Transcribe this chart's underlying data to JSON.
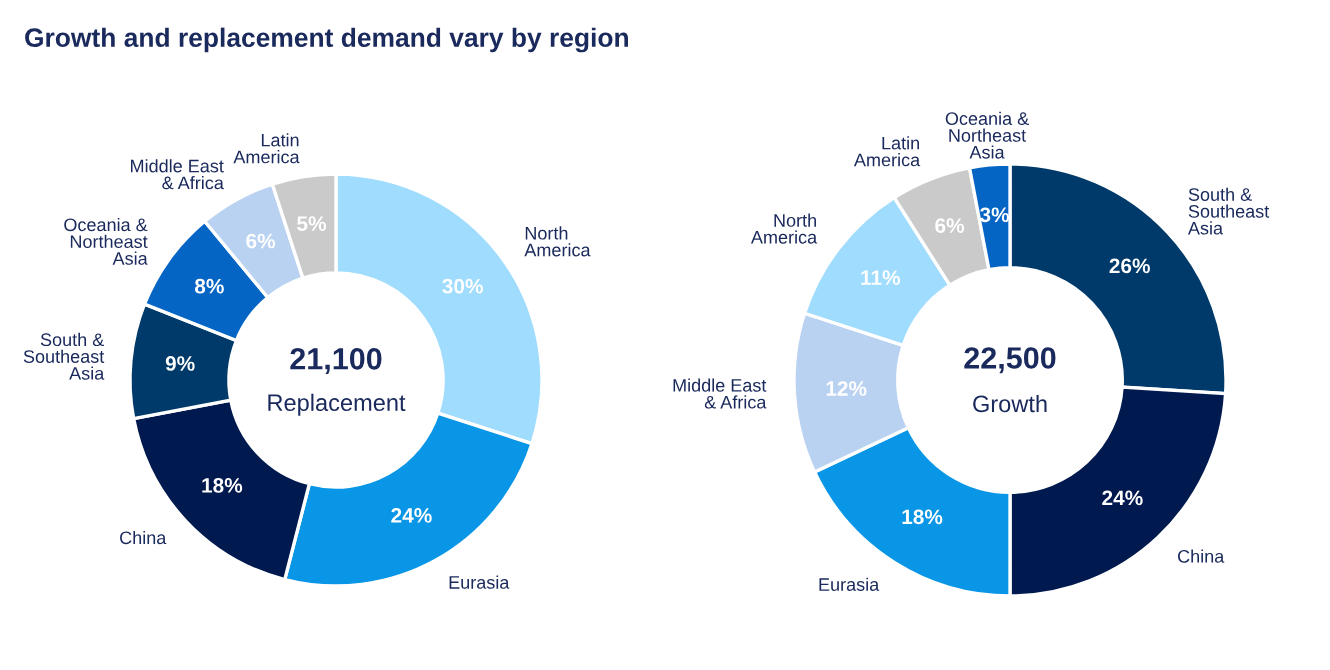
{
  "chart_data": [
    {
      "type": "donut",
      "title": "Growth and replacement demand vary by region",
      "categories": [
        "North America",
        "Eurasia",
        "China",
        "South & Southeast Asia",
        "Oceania & Northeast Asia",
        "Middle East & Africa",
        "Latin America"
      ],
      "values": [
        30,
        24,
        18,
        9,
        8,
        6,
        5
      ],
      "value_labels": [
        "30%",
        "24%",
        "18%",
        "9%",
        "8%",
        "6%",
        "5%"
      ],
      "colors": [
        "#9fdcfd",
        "#0a96e6",
        "#001a4f",
        "#003a6a",
        "#0565c4",
        "#bad2f2",
        "#cacaca"
      ],
      "annotations": [
        "21,100",
        "Replacement"
      ]
    },
    {
      "type": "donut",
      "categories": [
        "South & Southeast Asia",
        "China",
        "Eurasia",
        "Middle East & Africa",
        "North America",
        "Latin America",
        "Oceania & Northeast Asia"
      ],
      "values": [
        26,
        24,
        18,
        12,
        11,
        6,
        3
      ],
      "value_labels": [
        "26%",
        "24%",
        "18%",
        "12%",
        "11%",
        "6%",
        "3%"
      ],
      "colors": [
        "#003a6a",
        "#001a4f",
        "#0a96e6",
        "#bad2f2",
        "#9fdcfd",
        "#cacaca",
        "#0565c4"
      ],
      "annotations": [
        "22,500",
        "Growth"
      ]
    }
  ]
}
